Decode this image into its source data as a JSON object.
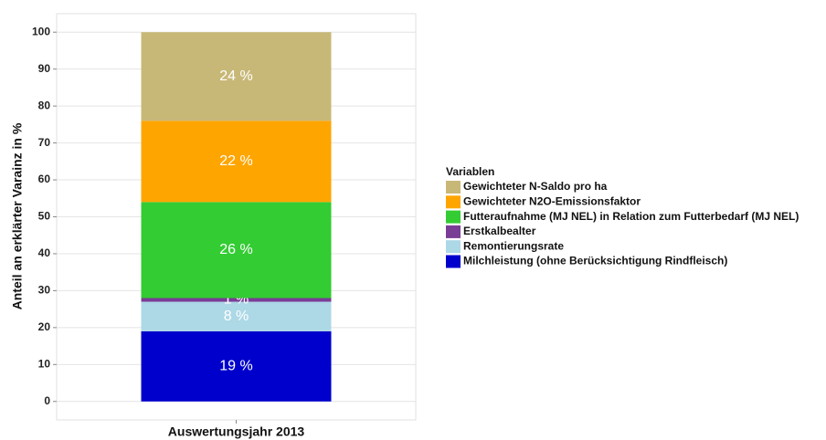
{
  "chart_data": {
    "type": "stacked_bar",
    "categories": [
      "Auswertungsjahr 2013"
    ],
    "ylabel": "Anteil an erklärter Varainz in %",
    "legend_title": "Variablen",
    "legend": "right",
    "grid": true,
    "ylim": [
      -5,
      105
    ],
    "yticks": [
      0,
      10,
      20,
      30,
      40,
      50,
      60,
      70,
      80,
      90,
      100
    ],
    "series": [
      {
        "name": "Milchleistung (ohne Berücksichtigung Rindfleisch)",
        "color": "#0000cc",
        "values": [
          19
        ],
        "value_labels": [
          "19 %"
        ]
      },
      {
        "name": "Remontierungsrate",
        "color": "#add8e6",
        "values": [
          8
        ],
        "value_labels": [
          "8 %"
        ]
      },
      {
        "name": "Erstkalbealter",
        "color": "#7a3d96",
        "values": [
          1
        ],
        "value_labels": [
          "1 %"
        ]
      },
      {
        "name": "Futteraufnahme (MJ NEL) in Relation zum Futterbedarf (MJ NEL)",
        "color": "#33cc33",
        "values": [
          26
        ],
        "value_labels": [
          "26 %"
        ]
      },
      {
        "name": "Gewichteter N2O-Emissionsfaktor",
        "color": "#ffa500",
        "values": [
          22
        ],
        "value_labels": [
          "22 %"
        ]
      },
      {
        "name": "Gewichteter N-Saldo pro ha",
        "color": "#c8b877",
        "values": [
          24
        ],
        "value_labels": [
          "24 %"
        ]
      }
    ]
  }
}
